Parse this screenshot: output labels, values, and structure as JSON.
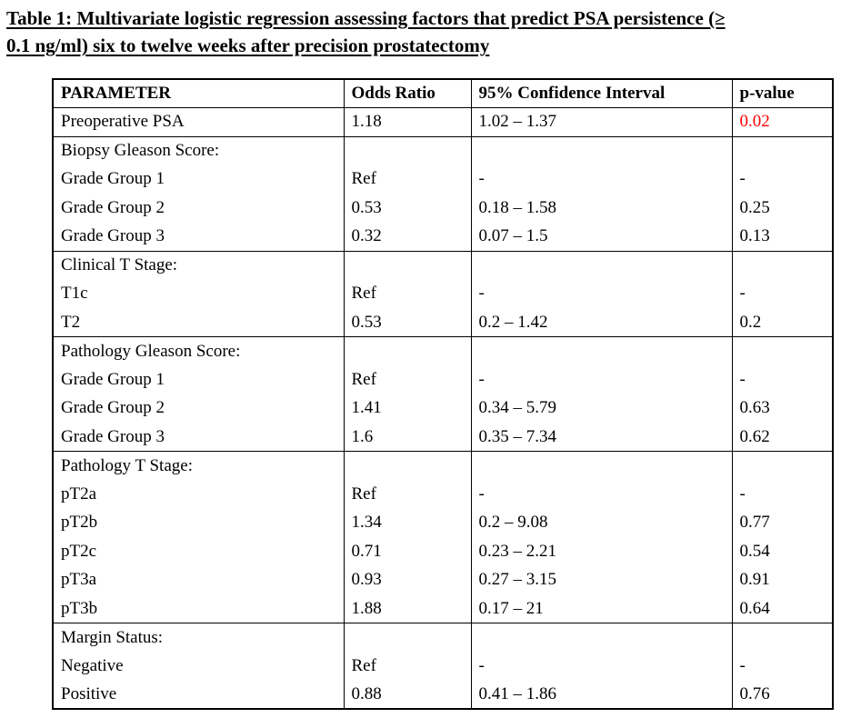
{
  "title": {
    "full": "Table 1: Multivariate logistic regression assessing factors that predict PSA persistence (≥ 0.1 ng/ml) six to twelve weeks after precision prostatectomy",
    "line1": "Table 1: Multivariate logistic regression assessing factors that predict PSA persistence (≥",
    "line2": "0.1 ng/ml) six to twelve weeks after precision prostatectomy"
  },
  "colors": {
    "significant_p": "#ff0000",
    "text": "#000000",
    "border": "#000000"
  },
  "table": {
    "columns": [
      "PARAMETER",
      "Odds Ratio",
      "95% Confidence Interval",
      "p-value"
    ],
    "groups": [
      {
        "name": "preoperative-psa",
        "rows": [
          {
            "parameter": "Preoperative PSA",
            "odds_ratio": "1.18",
            "ci": "1.02 – 1.37",
            "p_value": "0.02",
            "p_significant": true
          }
        ]
      },
      {
        "name": "biopsy-gleason-score",
        "rows": [
          {
            "parameter": "Biopsy Gleason Score:",
            "odds_ratio": "",
            "ci": "",
            "p_value": ""
          },
          {
            "parameter": "Grade Group 1",
            "odds_ratio": "Ref",
            "ci": "-",
            "p_value": "-"
          },
          {
            "parameter": "Grade Group 2",
            "odds_ratio": "0.53",
            "ci": "0.18 – 1.58",
            "p_value": "0.25"
          },
          {
            "parameter": "Grade Group 3",
            "odds_ratio": "0.32",
            "ci": "0.07 – 1.5",
            "p_value": "0.13"
          }
        ]
      },
      {
        "name": "clinical-t-stage",
        "rows": [
          {
            "parameter": "Clinical T Stage:",
            "odds_ratio": "",
            "ci": "",
            "p_value": ""
          },
          {
            "parameter": "T1c",
            "odds_ratio": "Ref",
            "ci": "-",
            "p_value": "-"
          },
          {
            "parameter": "T2",
            "odds_ratio": "0.53",
            "ci": "0.2 – 1.42",
            "p_value": "0.2"
          }
        ]
      },
      {
        "name": "pathology-gleason-score",
        "rows": [
          {
            "parameter": "Pathology Gleason Score:",
            "odds_ratio": "",
            "ci": "",
            "p_value": ""
          },
          {
            "parameter": "Grade Group 1",
            "odds_ratio": "Ref",
            "ci": "-",
            "p_value": "-"
          },
          {
            "parameter": "Grade Group 2",
            "odds_ratio": "1.41",
            "ci": "0.34 – 5.79",
            "p_value": "0.63"
          },
          {
            "parameter": "Grade Group 3",
            "odds_ratio": "1.6",
            "ci": "0.35 – 7.34",
            "p_value": "0.62"
          }
        ]
      },
      {
        "name": "pathology-t-stage",
        "rows": [
          {
            "parameter": "Pathology T Stage:",
            "odds_ratio": "",
            "ci": "",
            "p_value": ""
          },
          {
            "parameter": "pT2a",
            "odds_ratio": "Ref",
            "ci": "-",
            "p_value": "-"
          },
          {
            "parameter": "pT2b",
            "odds_ratio": "1.34",
            "ci": "0.2 – 9.08",
            "p_value": "0.77"
          },
          {
            "parameter": "pT2c",
            "odds_ratio": "0.71",
            "ci": "0.23 – 2.21",
            "p_value": "0.54"
          },
          {
            "parameter": "pT3a",
            "odds_ratio": "0.93",
            "ci": "0.27 – 3.15",
            "p_value": "0.91"
          },
          {
            "parameter": "pT3b",
            "odds_ratio": "1.88",
            "ci": "0.17 – 21",
            "p_value": "0.64"
          }
        ]
      },
      {
        "name": "margin-status",
        "rows": [
          {
            "parameter": "Margin Status:",
            "odds_ratio": "",
            "ci": "",
            "p_value": ""
          },
          {
            "parameter": "Negative",
            "odds_ratio": "Ref",
            "ci": "-",
            "p_value": "-"
          },
          {
            "parameter": "Positive",
            "odds_ratio": "0.88",
            "ci": "0.41 – 1.86",
            "p_value": "0.76"
          }
        ]
      }
    ]
  }
}
